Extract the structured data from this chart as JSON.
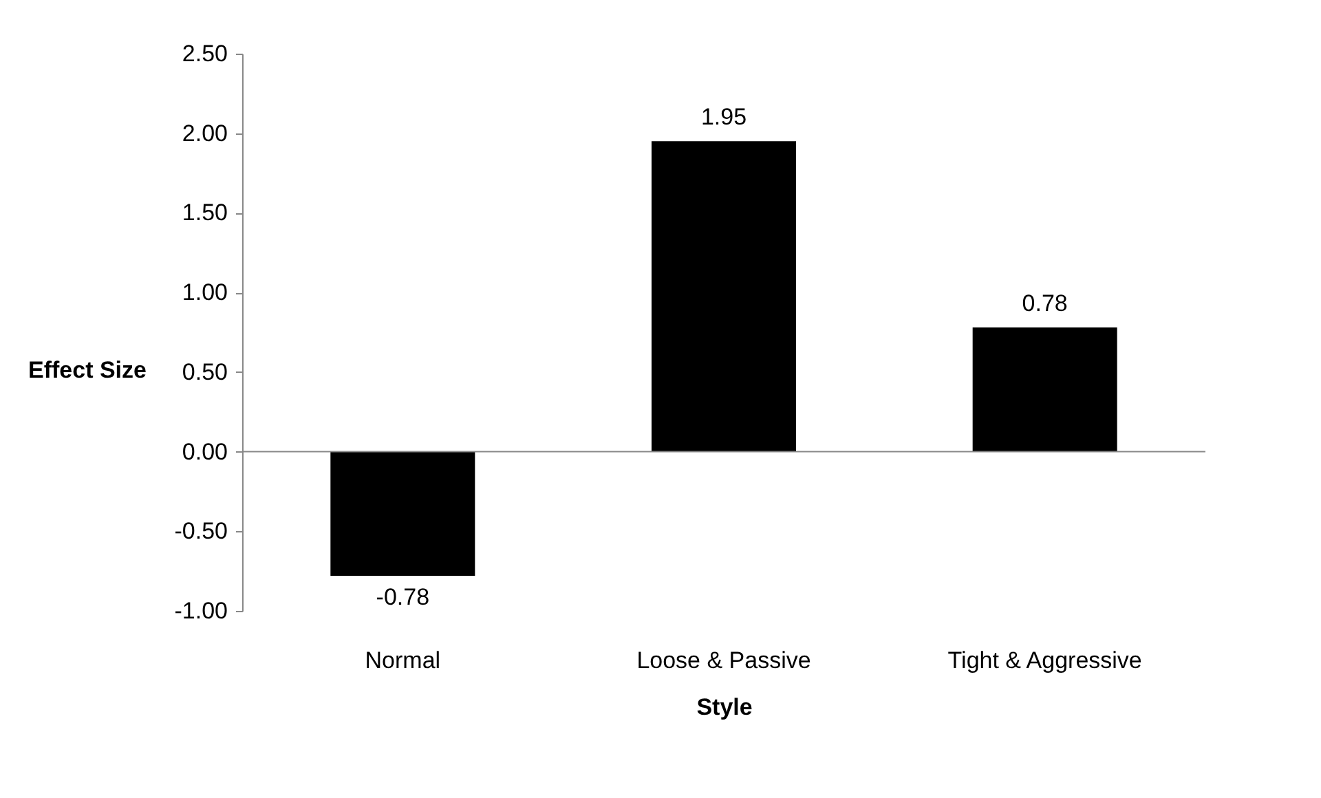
{
  "chart_data": {
    "type": "bar",
    "xlabel": "Style",
    "ylabel": "Effect Size",
    "categories": [
      "Normal",
      "Loose & Passive",
      "Tight & Aggressive"
    ],
    "values": [
      -0.78,
      1.95,
      0.78
    ],
    "color": "#000000",
    "ylim": [
      -1.0,
      2.5
    ],
    "yticks": [
      {
        "value": -1.0,
        "label": "-1.00"
      },
      {
        "value": -0.5,
        "label": "-0.50"
      },
      {
        "value": 0,
        "label": "0.00"
      },
      {
        "value": 0.5,
        "label": "0.50"
      },
      {
        "value": 1.0,
        "label": "1.00"
      },
      {
        "value": 1.5,
        "label": "1.50"
      },
      {
        "value": 2.0,
        "label": "2.00"
      },
      {
        "value": 2.5,
        "label": "2.50"
      }
    ],
    "data_labels": true
  }
}
